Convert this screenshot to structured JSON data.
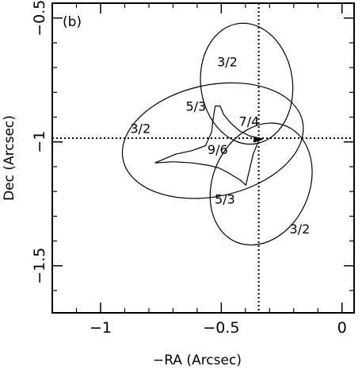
{
  "chart_data": {
    "type": "scatter",
    "panel_label": "(b)",
    "xlabel": "−RA (Arcsec)",
    "ylabel": "Dec (Arcsec)",
    "xlim": [
      -1.2,
      0.05
    ],
    "ylim": [
      -1.69,
      -0.44
    ],
    "xticks": [
      {
        "value": -1,
        "label": "−1"
      },
      {
        "value": -0.5,
        "label": "−0.5"
      },
      {
        "value": 0,
        "label": "0"
      }
    ],
    "yticks": [
      {
        "value": -1.5,
        "label": "−1.5"
      },
      {
        "value": -1,
        "label": "−1"
      },
      {
        "value": -0.5,
        "label": "−0.5"
      }
    ],
    "reference_lines": {
      "x": -0.345,
      "y": -0.985,
      "style": "dotted"
    },
    "ellipses": [
      {
        "cx": -0.395,
        "cy": -0.765,
        "rx": 0.19,
        "ry": 0.245,
        "angle_deg": -8
      },
      {
        "cx": -0.535,
        "cy": -0.995,
        "rx": 0.38,
        "ry": 0.225,
        "angle_deg": -12
      },
      {
        "cx": -0.335,
        "cy": -1.17,
        "rx": 0.2,
        "ry": 0.255,
        "angle_deg": 24
      }
    ],
    "caustic": [
      [
        -0.775,
        -1.085
      ],
      [
        -0.69,
        -1.05
      ],
      [
        -0.62,
        -1.035
      ],
      [
        -0.565,
        -1.015
      ],
      [
        -0.54,
        -0.96
      ],
      [
        -0.535,
        -0.915
      ],
      [
        -0.525,
        -0.855
      ],
      [
        -0.505,
        -0.855
      ],
      [
        -0.49,
        -0.89
      ],
      [
        -0.46,
        -0.925
      ],
      [
        -0.425,
        -0.955
      ],
      [
        -0.385,
        -0.975
      ],
      [
        -0.33,
        -0.988
      ],
      [
        -0.345,
        -0.995
      ],
      [
        -0.368,
        -1.05
      ],
      [
        -0.38,
        -1.1
      ],
      [
        -0.39,
        -1.14
      ],
      [
        -0.398,
        -1.175
      ],
      [
        -0.42,
        -1.155
      ],
      [
        -0.47,
        -1.125
      ],
      [
        -0.51,
        -1.105
      ],
      [
        -0.55,
        -1.095
      ],
      [
        -0.62,
        -1.085
      ],
      [
        -0.7,
        -1.08
      ],
      [
        -0.775,
        -1.085
      ]
    ],
    "source_point": [
      -0.34,
      -0.99
    ],
    "annotations": [
      {
        "text": "3/2",
        "x": -0.475,
        "y": -0.68
      },
      {
        "text": "5/3",
        "x": -0.605,
        "y": -0.86
      },
      {
        "text": "3/2",
        "x": -0.835,
        "y": -0.95
      },
      {
        "text": "7/4",
        "x": -0.385,
        "y": -0.92
      },
      {
        "text": "9/6",
        "x": -0.515,
        "y": -1.035
      },
      {
        "text": "5/3",
        "x": -0.485,
        "y": -1.235
      },
      {
        "text": "3/2",
        "x": -0.175,
        "y": -1.355
      }
    ]
  }
}
